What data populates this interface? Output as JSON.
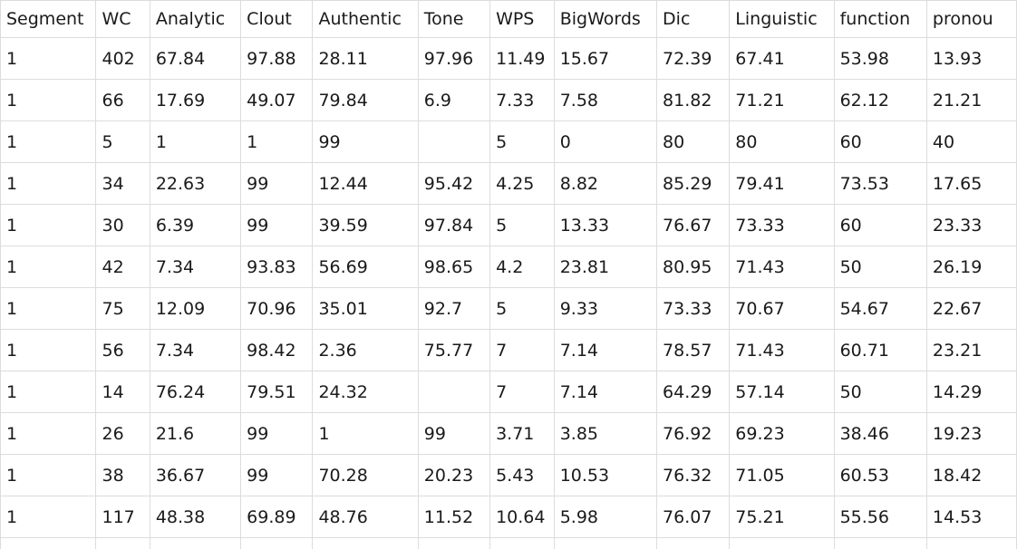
{
  "table": {
    "columns": [
      "Segment",
      "WC",
      "Analytic",
      "Clout",
      "Authentic",
      "Tone",
      "WPS",
      "BigWords",
      "Dic",
      "Linguistic",
      "function",
      "pronou"
    ],
    "rows": [
      [
        "1",
        "402",
        "67.84",
        "97.88",
        "28.11",
        "97.96",
        "11.49",
        "15.67",
        "72.39",
        "67.41",
        "53.98",
        "13.93"
      ],
      [
        "1",
        "66",
        "17.69",
        "49.07",
        "79.84",
        "6.9",
        "7.33",
        "7.58",
        "81.82",
        "71.21",
        "62.12",
        "21.21"
      ],
      [
        "1",
        "5",
        "1",
        "1",
        "99",
        "",
        "5",
        "0",
        "80",
        "80",
        "60",
        "40"
      ],
      [
        "1",
        "34",
        "22.63",
        "99",
        "12.44",
        "95.42",
        "4.25",
        "8.82",
        "85.29",
        "79.41",
        "73.53",
        "17.65"
      ],
      [
        "1",
        "30",
        "6.39",
        "99",
        "39.59",
        "97.84",
        "5",
        "13.33",
        "76.67",
        "73.33",
        "60",
        "23.33"
      ],
      [
        "1",
        "42",
        "7.34",
        "93.83",
        "56.69",
        "98.65",
        "4.2",
        "23.81",
        "80.95",
        "71.43",
        "50",
        "26.19"
      ],
      [
        "1",
        "75",
        "12.09",
        "70.96",
        "35.01",
        "92.7",
        "5",
        "9.33",
        "73.33",
        "70.67",
        "54.67",
        "22.67"
      ],
      [
        "1",
        "56",
        "7.34",
        "98.42",
        "2.36",
        "75.77",
        "7",
        "7.14",
        "78.57",
        "71.43",
        "60.71",
        "23.21"
      ],
      [
        "1",
        "14",
        "76.24",
        "79.51",
        "24.32",
        "",
        "7",
        "7.14",
        "64.29",
        "57.14",
        "50",
        "14.29"
      ],
      [
        "1",
        "26",
        "21.6",
        "99",
        "1",
        "99",
        "3.71",
        "3.85",
        "76.92",
        "69.23",
        "38.46",
        "19.23"
      ],
      [
        "1",
        "38",
        "36.67",
        "99",
        "70.28",
        "20.23",
        "5.43",
        "10.53",
        "76.32",
        "71.05",
        "60.53",
        "18.42"
      ],
      [
        "1",
        "117",
        "48.38",
        "69.89",
        "48.76",
        "11.52",
        "10.64",
        "5.98",
        "76.07",
        "75.21",
        "55.56",
        "14.53"
      ]
    ]
  }
}
